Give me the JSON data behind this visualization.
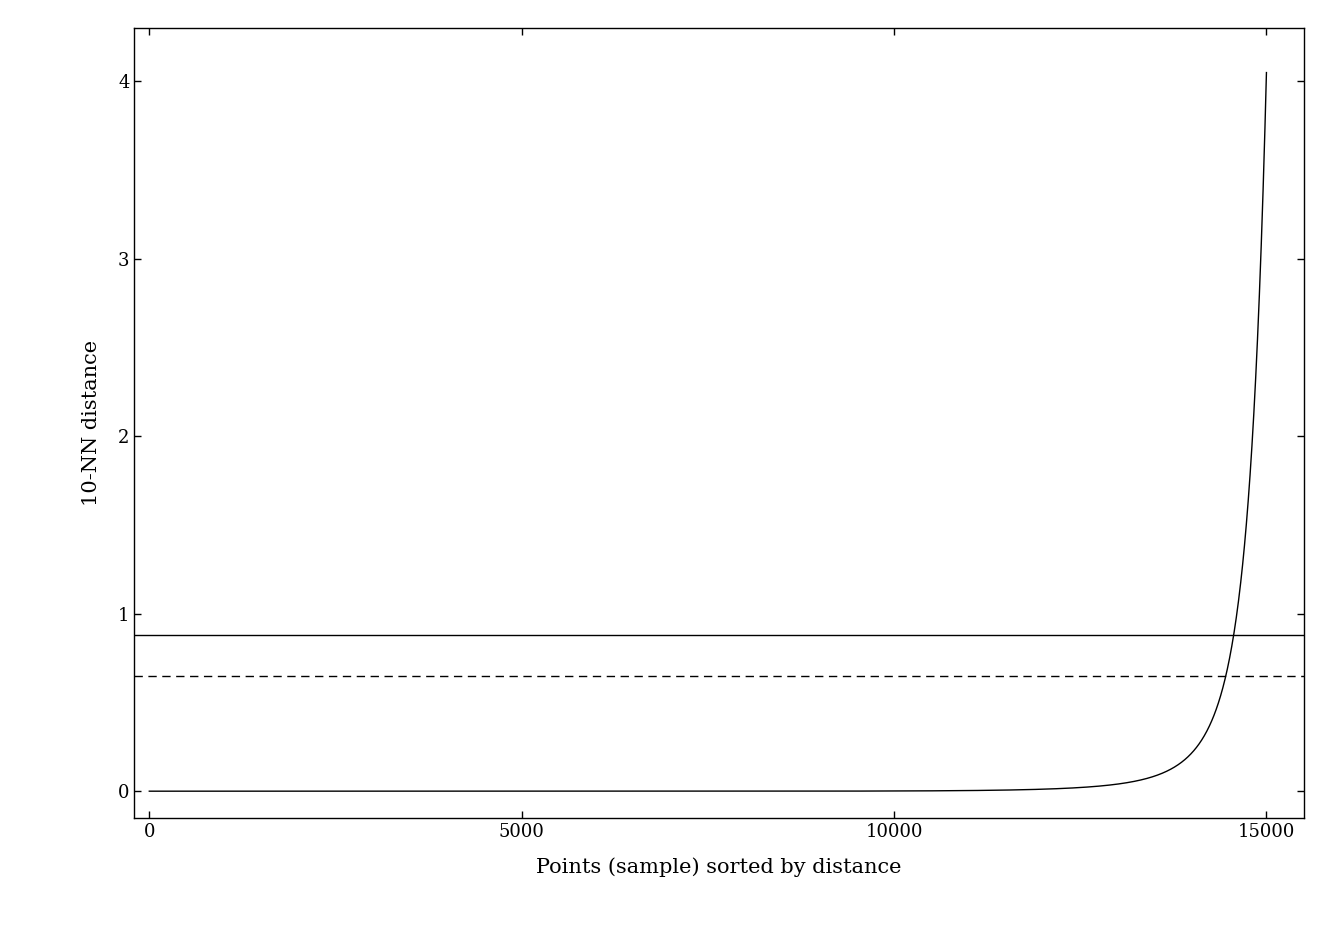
{
  "xlabel": "Points (sample) sorted by distance",
  "ylabel": "10-NN distance",
  "xlim": [
    -200,
    15500
  ],
  "ylim": [
    -0.15,
    4.3
  ],
  "n_points": 15000,
  "solid_hline": 0.88,
  "dashed_hline": 0.65,
  "xticks": [
    0,
    5000,
    10000,
    15000
  ],
  "yticks": [
    0,
    1,
    2,
    3,
    4
  ],
  "background_color": "#ffffff",
  "line_color": "#000000",
  "curve_a": 0.0115,
  "curve_b": 8.5,
  "curve_p": 7.2
}
